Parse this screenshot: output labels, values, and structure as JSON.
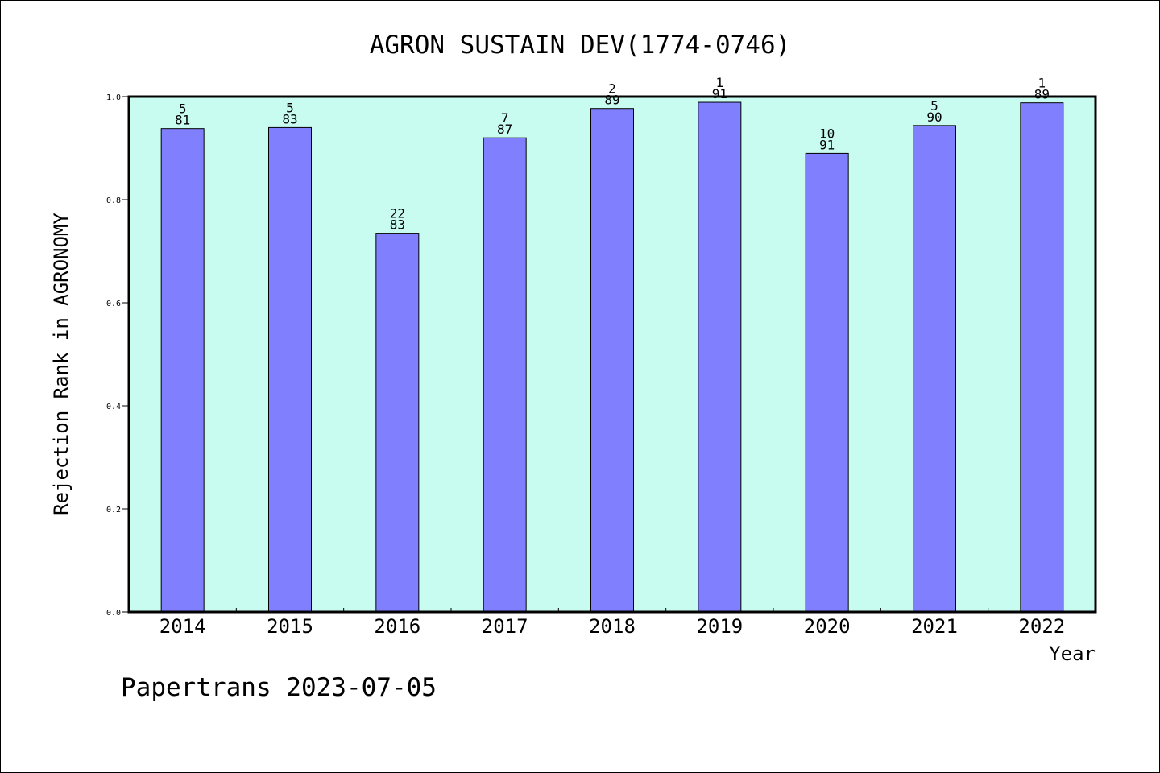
{
  "chart_data": {
    "type": "bar",
    "title": "AGRON SUSTAIN DEV(1774-0746)",
    "xlabel": "Year",
    "ylabel": "Rejection Rank in AGRONOMY",
    "ylim": [
      0,
      1.0
    ],
    "yticks": [
      "0.0",
      "0.2",
      "0.4",
      "0.6",
      "0.8",
      "1.0"
    ],
    "categories": [
      "2014",
      "2015",
      "2016",
      "2017",
      "2018",
      "2019",
      "2020",
      "2021",
      "2022"
    ],
    "values": [
      0.938,
      0.94,
      0.735,
      0.92,
      0.977,
      0.989,
      0.89,
      0.944,
      0.988
    ],
    "labels_top": [
      "5",
      "5",
      "22",
      "7",
      "2",
      "1",
      "10",
      "5",
      "1"
    ],
    "labels_bottom": [
      "81",
      "83",
      "83",
      "87",
      "89",
      "91",
      "91",
      "90",
      "89"
    ],
    "bar_color": "#8080ff",
    "plot_background": "#c8fcf0",
    "grid": false
  },
  "footer": "Papertrans 2023-07-05"
}
